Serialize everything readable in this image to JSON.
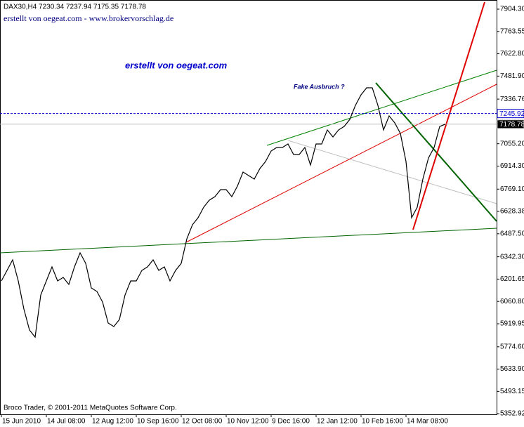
{
  "chart_data": {
    "type": "line",
    "title": "DAX30,H4  7230.34 7237.94 7175.35 7178.78",
    "subtitle": "erstellt von oegeat.com - www.brokervorschlag.de",
    "annotations": [
      "erstellt von oegeat.com",
      "Fake Ausbruch ?"
    ],
    "footer": "Broco Trader, © 2001-2011 MetaQuotes Software Corp.",
    "categories": [
      "15 Jun 2010",
      null,
      null,
      null,
      null,
      null,
      null,
      null,
      "14 Jul 08:00",
      null,
      null,
      null,
      null,
      null,
      null,
      null,
      "12 Aug 12:00",
      null,
      null,
      null,
      null,
      null,
      null,
      null,
      "10 Sep 16:00",
      null,
      null,
      null,
      null,
      null,
      null,
      null,
      "12 Oct 08:00",
      null,
      null,
      null,
      null,
      null,
      null,
      null,
      "10 Nov 12:00",
      null,
      null,
      null,
      null,
      null,
      null,
      null,
      "9 Dec 16:00",
      null,
      null,
      null,
      null,
      null,
      null,
      null,
      "12 Jan 12:00",
      null,
      null,
      null,
      null,
      null,
      null,
      null,
      "10 Feb 16:00",
      null,
      null,
      null,
      null,
      null,
      null,
      null,
      "14 Mar 08:00",
      null,
      null,
      null,
      null,
      null,
      null,
      null
    ],
    "series": [
      {
        "name": "DAX30",
        "color": "#000000",
        "values": [
          6190,
          6256.5,
          6322.9,
          6190.1,
          6012.9,
          5880,
          5835.7,
          6101.5,
          6190.1,
          6278.7,
          6190.1,
          6212.2,
          6167.9,
          6278.7,
          6367.3,
          6300.8,
          6145.8,
          6123.6,
          6057.2,
          5924.3,
          5902.2,
          5946.5,
          6101.5,
          6190.1,
          6190.1,
          6256.5,
          6278.7,
          6322.9,
          6256.5,
          6278.7,
          6190.1,
          6256.5,
          6300.8,
          6455.8,
          6544.3,
          6588.7,
          6655.1,
          6699.5,
          6721.7,
          6765.9,
          6765.9,
          6721.7,
          6788.1,
          6876.7,
          6854.5,
          6832.3,
          6898.8,
          6943.1,
          7009.5,
          7031.7,
          7031.7,
          7053.8,
          6987.4,
          6987.4,
          7031.7,
          6921,
          7053.8,
          7053.8,
          7142.3,
          7098.1,
          7142.3,
          7164.5,
          7208.7,
          7297.5,
          7363.9,
          7408.2,
          7408.2,
          7297.5,
          7142.3,
          7231,
          7186.7,
          7120.3,
          6943.1,
          6588.7,
          6655.1,
          6832.3,
          6965.2,
          7031.7,
          7164.5,
          7178.78
        ]
      }
    ],
    "ylim": [
      5348.49,
      7961.88
    ],
    "yticks": [
      {
        "value": 7904.3,
        "label": "7904.30"
      },
      {
        "value": 7763.55,
        "label": "7763.55"
      },
      {
        "value": 7622.8,
        "label": "7622.80"
      },
      {
        "value": 7481.9,
        "label": "7481.90"
      },
      {
        "value": 7336.76,
        "label": "7336.76"
      },
      {
        "value": 7055.2,
        "label": "7055.20"
      },
      {
        "value": 6914.3,
        "label": "6914.30"
      },
      {
        "value": 6769.1,
        "label": "6769.10"
      },
      {
        "value": 6628.38,
        "label": "6628.38"
      },
      {
        "value": 6487.5,
        "label": "6487.50"
      },
      {
        "value": 6342.3,
        "label": "6342.30"
      },
      {
        "value": 6201.65,
        "label": "6201.65"
      },
      {
        "value": 6060.8,
        "label": "6060.80"
      },
      {
        "value": 5919.95,
        "label": "5919.95"
      },
      {
        "value": 5774.6,
        "label": "5774.60"
      },
      {
        "value": 5633.9,
        "label": "5633.90"
      },
      {
        "value": 5493.15,
        "label": "5493.15"
      },
      {
        "value": 5352.92,
        "label": "5352.92"
      }
    ],
    "price_lines": [
      {
        "value": 7245.92,
        "label": "7245.92",
        "color": "#0000cd"
      },
      {
        "value": 7178.78,
        "label": "7178.78",
        "color": "#c0c0c0"
      }
    ],
    "grid": false
  }
}
